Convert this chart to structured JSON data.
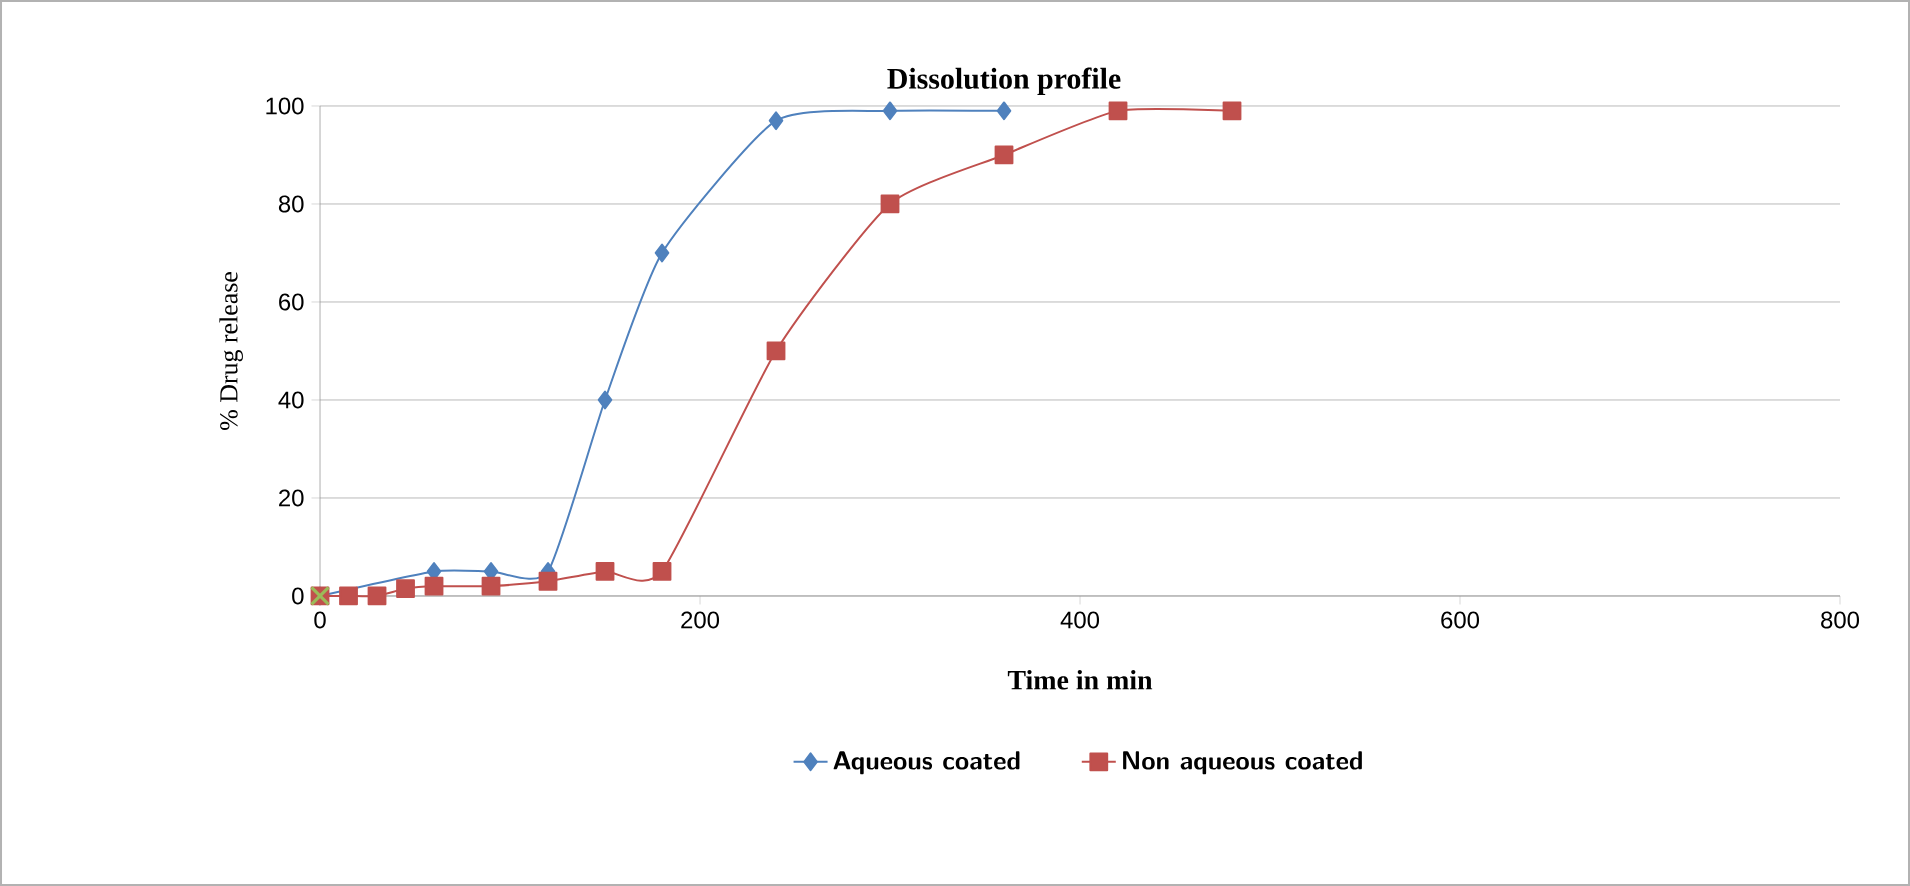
{
  "chart_data": {
    "type": "line",
    "title": "Dissolution profile",
    "xlabel": "Time in min",
    "ylabel": "% Drug release",
    "xlim": [
      0,
      800
    ],
    "xticks": [
      0,
      200,
      400,
      600,
      800
    ],
    "ylim": [
      0,
      100
    ],
    "yticks": [
      0,
      20,
      40,
      60,
      80,
      100
    ],
    "grid": "y",
    "legend": "bottom",
    "line_style": "solid",
    "series": [
      {
        "name": "Aqueous coated",
        "color": "#4f81bd",
        "marker": "diamond",
        "x": [
          0,
          60,
          90,
          120,
          150,
          180,
          240,
          300,
          360
        ],
        "values": [
          0,
          5,
          5,
          5,
          40,
          70,
          97,
          99,
          99
        ]
      },
      {
        "name": "Non aqueous coated",
        "color": "#c0504d",
        "marker": "square",
        "x": [
          0,
          15,
          30,
          45,
          60,
          90,
          120,
          150,
          180,
          240,
          300,
          360,
          420,
          480
        ],
        "values": [
          0,
          0,
          0,
          1.5,
          2,
          2,
          3,
          5,
          5,
          50,
          80,
          90,
          99,
          99
        ]
      },
      {
        "type": "scatter",
        "color": "#9bbb59",
        "marker": "cross",
        "x": [
          0
        ],
        "values": [
          0
        ]
      }
    ]
  }
}
